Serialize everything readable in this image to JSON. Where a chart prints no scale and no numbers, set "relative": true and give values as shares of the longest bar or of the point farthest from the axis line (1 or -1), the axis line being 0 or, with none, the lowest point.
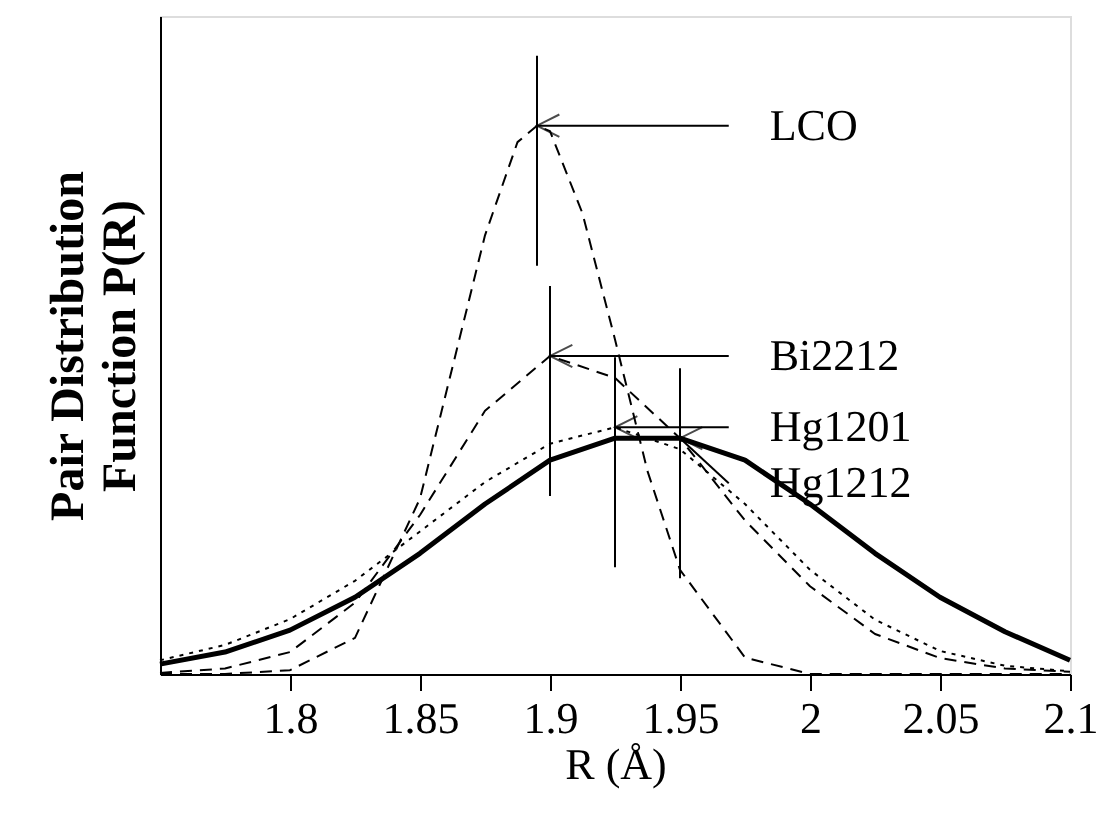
{
  "chart_data": {
    "type": "line",
    "xlabel": "R (Å)",
    "ylabel": "Pair Distribution\nFunction P(R)",
    "relative": true,
    "xlim": [
      1.75,
      2.1
    ],
    "xticks": [
      1.8,
      1.85,
      1.9,
      1.95,
      2,
      2.05,
      2.1
    ],
    "marker": "none",
    "series": [
      {
        "color": "#000000",
        "line_style": "dashed",
        "x": [
          1.75,
          1.775,
          1.8,
          1.825,
          1.85,
          1.8625,
          1.875,
          1.8875,
          1.895,
          1.9,
          1.9125,
          1.925,
          1.9375,
          1.95,
          1.975,
          2.0,
          2.025,
          2.05,
          2.075,
          2.1
        ],
        "values": [
          0,
          0,
          0.007,
          0.066,
          0.32,
          0.56,
          0.8,
          0.97,
          1,
          0.99,
          0.84,
          0.61,
          0.37,
          0.19,
          0.03,
          0,
          0,
          0,
          0,
          0
        ]
      },
      {
        "color": "#000000",
        "line_style": "dashed",
        "x": [
          1.75,
          1.775,
          1.8,
          1.825,
          1.85,
          1.875,
          1.9,
          1.925,
          1.95,
          1.975,
          2.0,
          2.025,
          2.05,
          2.075,
          2.1
        ],
        "values": [
          0.002,
          0.01,
          0.04,
          0.13,
          0.29,
          0.48,
          0.58,
          0.54,
          0.43,
          0.28,
          0.16,
          0.073,
          0.029,
          0.01,
          0.004
        ]
      },
      {
        "color": "#000000",
        "line_style": "dotted",
        "x": [
          1.75,
          1.775,
          1.8,
          1.825,
          1.85,
          1.875,
          1.9,
          1.925,
          1.95,
          1.975,
          2.0,
          2.025,
          2.05,
          2.075,
          2.1
        ],
        "values": [
          0.025,
          0.053,
          0.1,
          0.17,
          0.26,
          0.35,
          0.42,
          0.45,
          0.41,
          0.31,
          0.19,
          0.099,
          0.042,
          0.015,
          0.005
        ]
      },
      {
        "color": "#000000",
        "line_style": "solid",
        "x": [
          1.75,
          1.775,
          1.8,
          1.825,
          1.85,
          1.875,
          1.9,
          1.925,
          1.95,
          1.975,
          2.0,
          2.025,
          2.05,
          2.075,
          2.1
        ],
        "values": [
          0.018,
          0.04,
          0.08,
          0.14,
          0.22,
          0.31,
          0.39,
          0.43,
          0.43,
          0.39,
          0.31,
          0.22,
          0.14,
          0.077,
          0.025
        ]
      }
    ],
    "annotations": [
      "LCO",
      "Bi2212",
      "Hg1201",
      "Hg1212"
    ]
  }
}
